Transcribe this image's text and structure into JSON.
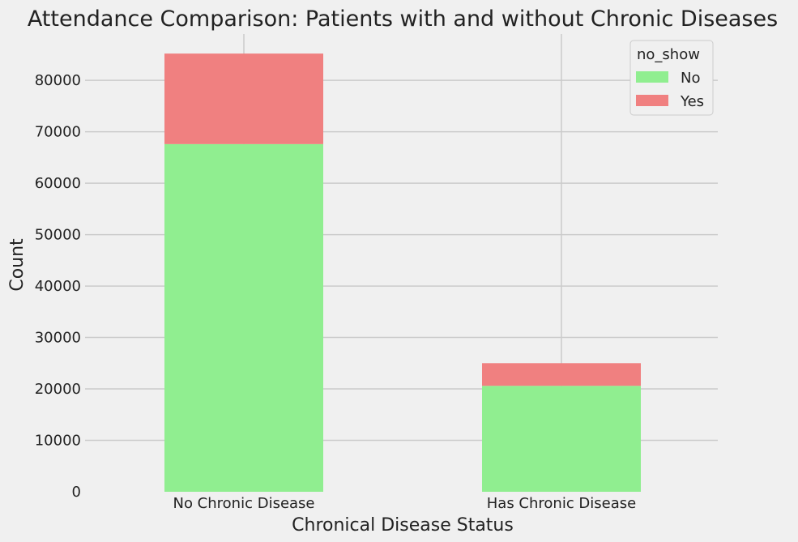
{
  "chart_data": {
    "type": "bar",
    "stacked": true,
    "title": "Attendance Comparison: Patients with and without Chronic Diseases",
    "xlabel": "Chronical Disease Status",
    "ylabel": "Count",
    "categories": [
      "No Chronic Disease",
      "Has Chronic Disease"
    ],
    "series": [
      {
        "name": "No",
        "values": [
          67600,
          20600
        ],
        "color": "#90ee90"
      },
      {
        "name": "Yes",
        "values": [
          17600,
          4400
        ],
        "color": "#f08080"
      }
    ],
    "ylim": [
      0,
      89000
    ],
    "yticks": [
      0,
      10000,
      20000,
      30000,
      40000,
      50000,
      60000,
      70000,
      80000
    ],
    "ytick_labels": [
      "0",
      "10000",
      "20000",
      "30000",
      "40000",
      "50000",
      "60000",
      "70000",
      "80000"
    ],
    "legend": {
      "title": "no_show",
      "position": "top-right"
    },
    "grid": true,
    "background": "#f0f0f0",
    "grid_color": "#cbcbcb"
  }
}
